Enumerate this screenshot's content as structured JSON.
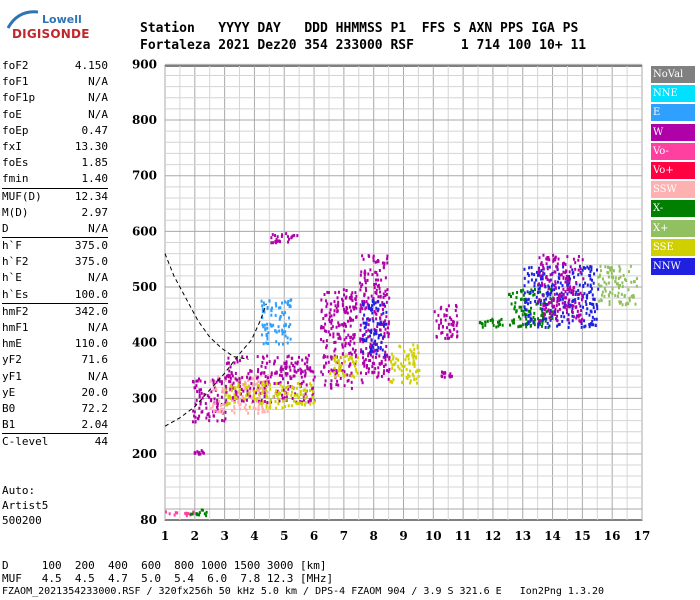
{
  "logo": {
    "top": "Lowell",
    "bottom": "DIGISONDE"
  },
  "header": {
    "line1": "Station   YYYY DAY   DDD HHMMSS P1  FFS S AXN PPS IGA PS",
    "line2": "Fortaleza 2021 Dez20 354 233000 RSF      1 714 100 10+ 11"
  },
  "params": [
    {
      "label": "foF2",
      "value": "4.150"
    },
    {
      "label": "foF1",
      "value": "N/A"
    },
    {
      "label": "foF1p",
      "value": "N/A"
    },
    {
      "label": "foE",
      "value": "N/A"
    },
    {
      "label": "foEp",
      "value": "0.47"
    },
    {
      "label": "fxI",
      "value": "13.30"
    },
    {
      "label": "foEs",
      "value": "1.85"
    },
    {
      "label": "fmin",
      "value": "1.40"
    },
    {
      "label": "MUF(D)",
      "value": "12.34"
    },
    {
      "label": "M(D)",
      "value": "2.97"
    },
    {
      "label": "D",
      "value": "N/A"
    },
    {
      "label": "h`F",
      "value": "375.0"
    },
    {
      "label": "h`F2",
      "value": "375.0"
    },
    {
      "label": "h`E",
      "value": "N/A"
    },
    {
      "label": "h`Es",
      "value": "100.0"
    },
    {
      "label": "hmF2",
      "value": "342.0"
    },
    {
      "label": "hmF1",
      "value": "N/A"
    },
    {
      "label": "hmE",
      "value": "110.0"
    },
    {
      "label": "yF2",
      "value": "71.6"
    },
    {
      "label": "yF1",
      "value": "N/A"
    },
    {
      "label": "yE",
      "value": "20.0"
    },
    {
      "label": "B0",
      "value": "72.2"
    },
    {
      "label": "B1",
      "value": "2.04"
    },
    {
      "label": "C-level",
      "value": "44"
    }
  ],
  "auto": [
    "Auto:",
    "Artist5",
    "500200"
  ],
  "legend": [
    {
      "label": "NoVal",
      "color": "#808080"
    },
    {
      "label": "NNE",
      "color": "#00e0ff"
    },
    {
      "label": "E",
      "color": "#30a0ff"
    },
    {
      "label": "W",
      "color": "#b000a8"
    },
    {
      "label": "Vo-",
      "color": "#ff40a0"
    },
    {
      "label": "Vo+",
      "color": "#ff0040"
    },
    {
      "label": "SSW",
      "color": "#ffb0b0"
    },
    {
      "label": "X-",
      "color": "#008000"
    },
    {
      "label": "X+",
      "color": "#90c060"
    },
    {
      "label": "SSE",
      "color": "#d0d000"
    },
    {
      "label": "NNW",
      "color": "#2020e0"
    }
  ],
  "footer": {
    "line1": "D     100  200  400  600  800 1000 1500 3000 [km]",
    "line2": "MUF   4.5  4.5  4.7  5.0  5.4  6.0  7.8 12.3 [MHz]",
    "line3": "FZAOM_2021354233000.RSF / 320fx256h 50 kHz 5.0 km / DPS-4 FZAOM 904 / 3.9 S 321.6 E   Ion2Png 1.3.20"
  },
  "chart_data": {
    "type": "scatter",
    "xlim": [
      1,
      17
    ],
    "ylim": [
      80,
      900
    ],
    "x_ticks": [
      "1",
      "2",
      "3",
      "4",
      "5",
      "6",
      "7",
      "8",
      "9",
      "10",
      "11",
      "12",
      "13",
      "14",
      "15",
      "16",
      "17"
    ],
    "y_ticks": [
      "80",
      "200",
      "300",
      "400",
      "500",
      "600",
      "700",
      "800",
      "900"
    ],
    "grid": true,
    "echo_clusters": [
      {
        "freq_range": [
          1.0,
          2.0
        ],
        "height_range": [
          90,
          98
        ],
        "color": "#ff40a0"
      },
      {
        "freq_range": [
          1.8,
          2.4
        ],
        "height_range": [
          90,
          102
        ],
        "color": "#008000"
      },
      {
        "freq_range": [
          1.8,
          2.3
        ],
        "height_range": [
          200,
          210
        ],
        "color": "#b000a8"
      },
      {
        "freq_range": [
          1.9,
          3.0
        ],
        "height_range": [
          260,
          340
        ],
        "color": "#b000a8"
      },
      {
        "freq_range": [
          2.5,
          4.5
        ],
        "height_range": [
          275,
          345
        ],
        "color": "#ffb0b0"
      },
      {
        "freq_range": [
          3.0,
          6.0
        ],
        "height_range": [
          295,
          380
        ],
        "color": "#b000a8"
      },
      {
        "freq_range": [
          3.0,
          6.0
        ],
        "height_range": [
          285,
          330
        ],
        "color": "#d0d000"
      },
      {
        "freq_range": [
          4.2,
          5.2
        ],
        "height_range": [
          400,
          480
        ],
        "color": "#30a0ff"
      },
      {
        "freq_range": [
          4.5,
          5.5
        ],
        "height_range": [
          580,
          600
        ],
        "color": "#b000a8"
      },
      {
        "freq_range": [
          6.2,
          7.4
        ],
        "height_range": [
          320,
          500
        ],
        "color": "#b000a8"
      },
      {
        "freq_range": [
          6.5,
          7.5
        ],
        "height_range": [
          340,
          380
        ],
        "color": "#d0d000"
      },
      {
        "freq_range": [
          7.5,
          8.5
        ],
        "height_range": [
          330,
          560
        ],
        "color": "#b000a8"
      },
      {
        "freq_range": [
          7.6,
          8.4
        ],
        "height_range": [
          380,
          480
        ],
        "color": "#2020e0"
      },
      {
        "freq_range": [
          8.5,
          9.5
        ],
        "height_range": [
          330,
          400
        ],
        "color": "#d0d000"
      },
      {
        "freq_range": [
          10.0,
          10.8
        ],
        "height_range": [
          410,
          470
        ],
        "color": "#b000a8"
      },
      {
        "freq_range": [
          10.2,
          10.6
        ],
        "height_range": [
          340,
          350
        ],
        "color": "#b000a8"
      },
      {
        "freq_range": [
          11.5,
          12.5
        ],
        "height_range": [
          430,
          445
        ],
        "color": "#008000"
      },
      {
        "freq_range": [
          12.5,
          14.0
        ],
        "height_range": [
          430,
          500
        ],
        "color": "#008000"
      },
      {
        "freq_range": [
          13.0,
          15.5
        ],
        "height_range": [
          430,
          540
        ],
        "color": "#2020e0"
      },
      {
        "freq_range": [
          13.5,
          15.0
        ],
        "height_range": [
          440,
          560
        ],
        "color": "#b000a8"
      },
      {
        "freq_range": [
          15.5,
          16.8
        ],
        "height_range": [
          470,
          540
        ],
        "color": "#90c060"
      }
    ],
    "model_curve": {
      "style": "dashed",
      "points": [
        [
          1.0,
          560
        ],
        [
          1.3,
          520
        ],
        [
          1.7,
          480
        ],
        [
          2.1,
          440
        ],
        [
          2.5,
          410
        ],
        [
          2.9,
          390
        ],
        [
          3.3,
          375
        ],
        [
          3.8,
          370
        ]
      ],
      "lower_points": [
        [
          1.0,
          250
        ],
        [
          1.5,
          265
        ],
        [
          2.0,
          285
        ],
        [
          2.5,
          315
        ],
        [
          3.0,
          345
        ],
        [
          3.5,
          380
        ],
        [
          3.9,
          405
        ],
        [
          4.2,
          440
        ],
        [
          4.4,
          470
        ]
      ]
    }
  }
}
